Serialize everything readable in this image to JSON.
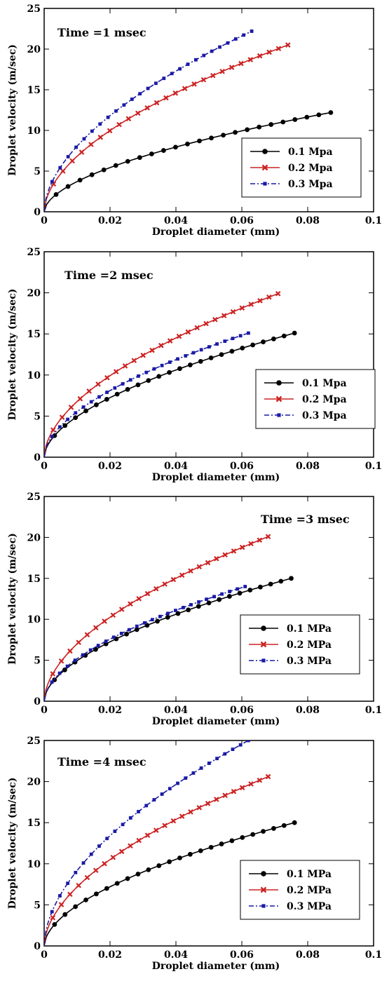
{
  "chart_data": [
    {
      "type": "line",
      "annotation": "Time =1 msec",
      "xlabel": "Droplet diameter (mm)",
      "ylabel": "Droplet velocity (m/sec)",
      "xlim": [
        0,
        0.1
      ],
      "ylim": [
        0,
        25
      ],
      "xticks": [
        "0",
        "0.02",
        "0.04",
        "0.06",
        "0.08",
        "0.1"
      ],
      "yticks": [
        "0",
        "5",
        "10",
        "15",
        "20",
        "25"
      ],
      "grid": false,
      "legend": "lower-right",
      "series": [
        {
          "name": "0.1 Mpa",
          "color": "#000000",
          "marker": "circle",
          "dash": "solid",
          "xmax": 0.087,
          "ymax": 12.2
        },
        {
          "name": "0.2 Mpa",
          "color": "#cc2222",
          "marker": "x",
          "dash": "solid",
          "xmax": 0.074,
          "ymax": 20.5
        },
        {
          "name": "0.3 Mpa",
          "color": "#1a1aa6",
          "marker": "square",
          "dash": "dashdot",
          "xmax": 0.063,
          "ymax": 22.2
        }
      ]
    },
    {
      "type": "line",
      "annotation": "Time =2 msec",
      "xlabel": "Droplet diameter (mm)",
      "ylabel": "Droplet velocity (m/sec)",
      "xlim": [
        0,
        0.1
      ],
      "ylim": [
        0,
        25
      ],
      "xticks": [
        "0",
        "0.02",
        "0.04",
        "0.06",
        "0.08",
        "0.1"
      ],
      "yticks": [
        "0",
        "5",
        "10",
        "15",
        "20",
        "25"
      ],
      "grid": false,
      "legend": "lower-right",
      "series": [
        {
          "name": "0.1 Mpa",
          "color": "#000000",
          "marker": "circle",
          "dash": "solid",
          "xmax": 0.076,
          "ymax": 15.1
        },
        {
          "name": "0.2 Mpa",
          "color": "#cc2222",
          "marker": "x",
          "dash": "solid",
          "xmax": 0.071,
          "ymax": 19.9
        },
        {
          "name": "0.3 Mpa",
          "color": "#1a1aa6",
          "marker": "square",
          "dash": "dashdot",
          "xmax": 0.062,
          "ymax": 15.1
        }
      ]
    },
    {
      "type": "line",
      "annotation": "Time =3 msec",
      "xlabel": "Droplet diameter (mm)",
      "ylabel": "Droplet velocity (m/sec)",
      "xlim": [
        0,
        0.1
      ],
      "ylim": [
        0,
        25
      ],
      "xticks": [
        "0",
        "0.02",
        "0.04",
        "0.06",
        "0.08",
        "0.1"
      ],
      "yticks": [
        "0",
        "5",
        "10",
        "15",
        "20",
        "25"
      ],
      "grid": false,
      "legend": "lower-right",
      "series": [
        {
          "name": "0.1 MPa",
          "color": "#000000",
          "marker": "circle",
          "dash": "solid",
          "xmax": 0.075,
          "ymax": 15.0
        },
        {
          "name": "0.2 MPa",
          "color": "#cc2222",
          "marker": "x",
          "dash": "solid",
          "xmax": 0.068,
          "ymax": 20.1
        },
        {
          "name": "0.3 MPa",
          "color": "#1a1aa6",
          "marker": "square",
          "dash": "dashdot",
          "xmax": 0.061,
          "ymax": 14.0
        }
      ]
    },
    {
      "type": "line",
      "annotation": "Time =4 msec",
      "xlabel": "Droplet diameter (mm)",
      "ylabel": "Droplet velocity (m/sec)",
      "xlim": [
        0,
        0.1
      ],
      "ylim": [
        0,
        25
      ],
      "xticks": [
        "0",
        "0.02",
        "0.04",
        "0.06",
        "0.08",
        "0.1"
      ],
      "yticks": [
        "0",
        "5",
        "10",
        "15",
        "20",
        "25"
      ],
      "grid": false,
      "legend": "lower-right",
      "series": [
        {
          "name": "0.1 MPa",
          "color": "#000000",
          "marker": "circle",
          "dash": "solid",
          "xmax": 0.076,
          "ymax": 15.0
        },
        {
          "name": "0.2 MPa",
          "color": "#cc2222",
          "marker": "x",
          "dash": "solid",
          "xmax": 0.068,
          "ymax": 20.6
        },
        {
          "name": "0.3 MPa",
          "color": "#1a1aa6",
          "marker": "square",
          "dash": "dashdot",
          "xmax": 0.062,
          "ymax": 25.0
        }
      ]
    }
  ]
}
